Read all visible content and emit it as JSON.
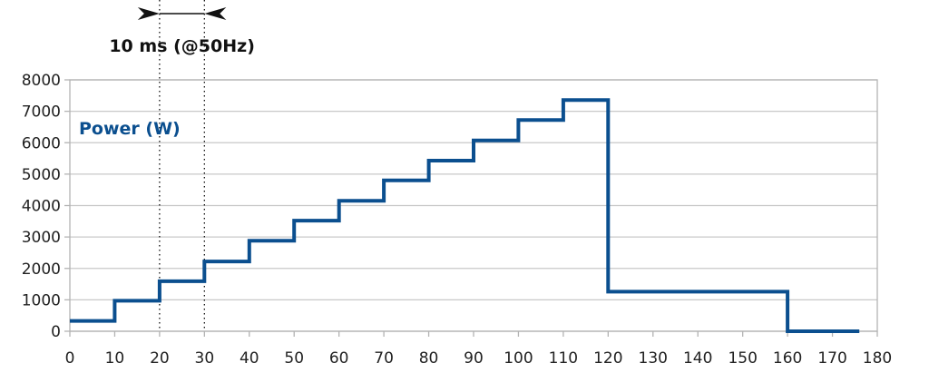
{
  "chart_data": {
    "type": "line",
    "step": true,
    "x": [
      0,
      10,
      10,
      20,
      20,
      30,
      30,
      40,
      40,
      50,
      50,
      60,
      60,
      70,
      70,
      80,
      80,
      90,
      90,
      100,
      100,
      110,
      110,
      120,
      120,
      160,
      160,
      176
    ],
    "series": [
      {
        "name": "Power (W)",
        "color": "#0b4f8f",
        "values": [
          330,
          330,
          970,
          970,
          1590,
          1590,
          2220,
          2220,
          2880,
          2880,
          3520,
          3520,
          4150,
          4150,
          4800,
          4800,
          5430,
          5430,
          6070,
          6070,
          6720,
          6720,
          7360,
          7360,
          1260,
          1260,
          0,
          0
        ]
      }
    ],
    "xlim": [
      0,
      180
    ],
    "ylim": [
      0,
      8000
    ],
    "x_ticks": [
      "0",
      "10",
      "20",
      "30",
      "40",
      "50",
      "60",
      "70",
      "80",
      "90",
      "100",
      "110",
      "120",
      "130",
      "140",
      "150",
      "160",
      "170",
      "180"
    ],
    "y_ticks": [
      "0",
      "1000",
      "2000",
      "3000",
      "4000",
      "5000",
      "6000",
      "7000",
      "8000"
    ],
    "grid": true,
    "title": "",
    "xlabel": "",
    "ylabel": "",
    "annotation": {
      "text": "10 ms (@50Hz)",
      "x_start": 20,
      "x_end": 30
    }
  }
}
